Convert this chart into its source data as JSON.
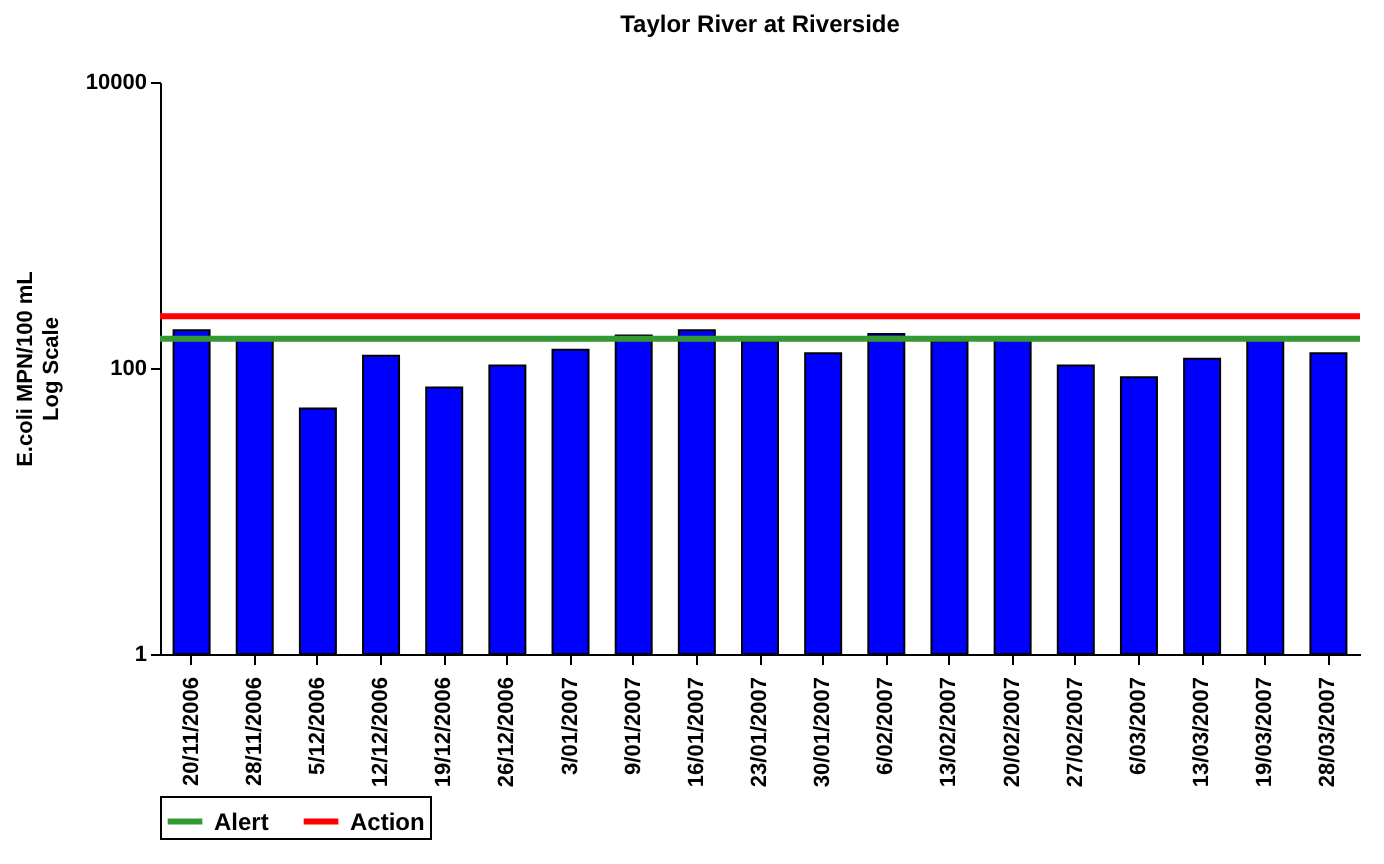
{
  "chart_data": {
    "type": "bar",
    "title": "Taylor River at Riverside",
    "ylabel": "E.coli MPN/100 mL\nLog Scale",
    "categories": [
      "20/11/2006",
      "28/11/2006",
      "5/12/2006",
      "12/12/2006",
      "19/12/2006",
      "26/12/2006",
      "3/01/2007",
      "9/01/2007",
      "16/01/2007",
      "23/01/2007",
      "30/01/2007",
      "6/02/2007",
      "13/02/2007",
      "20/02/2007",
      "27/02/2007",
      "6/03/2007",
      "13/03/2007",
      "19/03/2007",
      "28/03/2007"
    ],
    "series": [
      {
        "color": "#0000ff",
        "values": [
          184,
          164,
          52,
          122,
          73,
          104,
          134,
          169,
          184,
          154,
          127,
          173,
          154,
          164,
          104,
          86,
          116,
          159,
          127
        ]
      }
    ],
    "ref_lines": [
      {
        "axis": "y",
        "value": 160,
        "label": "Alert",
        "color": "#339933"
      },
      {
        "axis": "y",
        "value": 230,
        "label": "Action",
        "color": "#ff0000"
      }
    ],
    "log": true,
    "ylim": [
      1,
      10000
    ],
    "yticks": [
      1,
      100,
      10000
    ],
    "grid": false,
    "legend": "bottom"
  }
}
